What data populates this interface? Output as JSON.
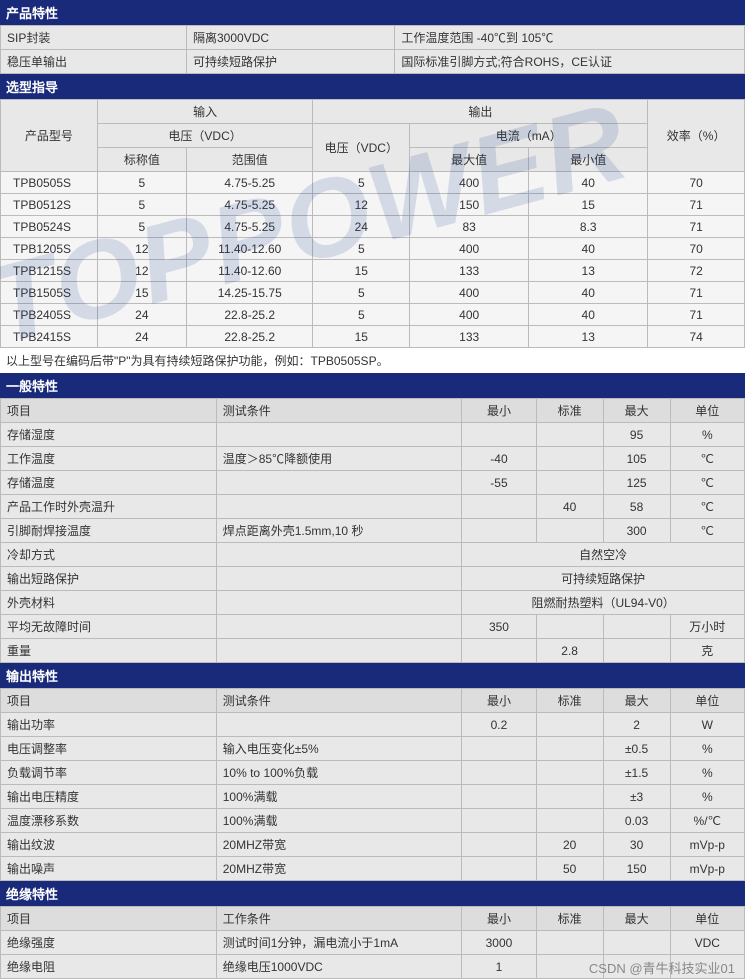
{
  "s1": {
    "h": "产品特性",
    "r1c1": "SIP封装",
    "r1c2": "隔离3000VDC",
    "r1c3": "工作温度范围 -40℃到 105℃",
    "r2c1": "稳压单输出",
    "r2c2": "可持续短路保护",
    "r2c3": "国际标准引脚方式;符合ROHS，CE认证"
  },
  "s2": {
    "h": "选型指导",
    "th_model": "产品型号",
    "th_in": "输入",
    "th_out": "输出",
    "th_eff": "效率（%）",
    "th_vin": "电压（VDC）",
    "th_vout": "电压（VDC）",
    "th_iout": "电流（mA）",
    "th_nom": "标称值",
    "th_range": "范围值",
    "th_max": "最大值",
    "th_min": "最小值",
    "rows": [
      {
        "m": "TPB0505S",
        "vn": "5",
        "vr": "4.75-5.25",
        "vo": "5",
        "im": "400",
        "in": "40",
        "e": "70"
      },
      {
        "m": "TPB0512S",
        "vn": "5",
        "vr": "4.75-5.25",
        "vo": "12",
        "im": "150",
        "in": "15",
        "e": "71"
      },
      {
        "m": "TPB0524S",
        "vn": "5",
        "vr": "4.75-5.25",
        "vo": "24",
        "im": "83",
        "in": "8.3",
        "e": "71"
      },
      {
        "m": "TPB1205S",
        "vn": "12",
        "vr": "11.40-12.60",
        "vo": "5",
        "im": "400",
        "in": "40",
        "e": "70"
      },
      {
        "m": "TPB1215S",
        "vn": "12",
        "vr": "11.40-12.60",
        "vo": "15",
        "im": "133",
        "in": "13",
        "e": "72"
      },
      {
        "m": "TPB1505S",
        "vn": "15",
        "vr": "14.25-15.75",
        "vo": "5",
        "im": "400",
        "in": "40",
        "e": "71"
      },
      {
        "m": "TPB2405S",
        "vn": "24",
        "vr": "22.8-25.2",
        "vo": "5",
        "im": "400",
        "in": "40",
        "e": "71"
      },
      {
        "m": "TPB2415S",
        "vn": "24",
        "vr": "22.8-25.2",
        "vo": "15",
        "im": "133",
        "in": "13",
        "e": "74"
      }
    ],
    "note": "以上型号在编码后带\"P\"为具有持续短路保护功能，例如：TPB0505SP。"
  },
  "s3": {
    "h": "一般特性",
    "th_item": "项目",
    "th_cond": "测试条件",
    "th_min": "最小",
    "th_std": "标准",
    "th_max": "最大",
    "th_unit": "单位",
    "rows": [
      {
        "i": "存储湿度",
        "c": "",
        "mn": "",
        "st": "",
        "mx": "95",
        "u": "%"
      },
      {
        "i": "工作温度",
        "c": "温度＞85℃降额使用",
        "mn": "-40",
        "st": "",
        "mx": "105",
        "u": "℃"
      },
      {
        "i": "存储温度",
        "c": "",
        "mn": "-55",
        "st": "",
        "mx": "125",
        "u": "℃"
      },
      {
        "i": "产品工作时外壳温升",
        "c": "",
        "mn": "",
        "st": "40",
        "mx": "58",
        "u": "℃"
      },
      {
        "i": "引脚耐焊接温度",
        "c": "焊点距离外壳1.5mm,10 秒",
        "mn": "",
        "st": "",
        "mx": "300",
        "u": "℃"
      },
      {
        "i": "冷却方式",
        "c": "",
        "span": "自然空冷"
      },
      {
        "i": "输出短路保护",
        "c": "",
        "span": "可持续短路保护"
      },
      {
        "i": "外壳材料",
        "c": "",
        "span": "阻燃耐热塑料（UL94-V0）"
      },
      {
        "i": "平均无故障时间",
        "c": "",
        "mn": "350",
        "st": "",
        "mx": "",
        "u": "万小时"
      },
      {
        "i": "重量",
        "c": "",
        "mn": "",
        "st": "2.8",
        "mx": "",
        "u": "克"
      }
    ]
  },
  "s4": {
    "h": "输出特性",
    "th_item": "项目",
    "th_cond": "测试条件",
    "th_min": "最小",
    "th_std": "标准",
    "th_max": "最大",
    "th_unit": "单位",
    "rows": [
      {
        "i": "输出功率",
        "c": "",
        "mn": "0.2",
        "st": "",
        "mx": "2",
        "u": "W"
      },
      {
        "i": "电压调整率",
        "c": "输入电压变化±5%",
        "mn": "",
        "st": "",
        "mx": "±0.5",
        "u": "%"
      },
      {
        "i": "负载调节率",
        "c": "10% to 100%负载",
        "mn": "",
        "st": "",
        "mx": "±1.5",
        "u": "%"
      },
      {
        "i": "输出电压精度",
        "c": "100%满载",
        "mn": "",
        "st": "",
        "mx": "±3",
        "u": "%"
      },
      {
        "i": "温度漂移系数",
        "c": "100%满载",
        "mn": "",
        "st": "",
        "mx": "0.03",
        "u": "%/℃"
      },
      {
        "i": "输出纹波",
        "c": "20MHZ带宽",
        "mn": "",
        "st": "20",
        "mx": "30",
        "u": "mVp-p"
      },
      {
        "i": "输出噪声",
        "c": "20MHZ带宽",
        "mn": "",
        "st": "50",
        "mx": "150",
        "u": "mVp-p"
      }
    ]
  },
  "s5": {
    "h": "绝缘特性",
    "th_item": "项目",
    "th_cond": "工作条件",
    "th_min": "最小",
    "th_std": "标准",
    "th_max": "最大",
    "th_unit": "单位",
    "rows": [
      {
        "i": "绝缘强度",
        "c": "测试时间1分钟，漏电流小于1mA",
        "mn": "3000",
        "st": "",
        "mx": "",
        "u": "VDC"
      },
      {
        "i": "绝缘电阻",
        "c": "绝缘电压1000VDC",
        "mn": "1",
        "st": "",
        "mx": "",
        "u": ""
      }
    ]
  },
  "footer": "CSDN @青牛科技实业01"
}
